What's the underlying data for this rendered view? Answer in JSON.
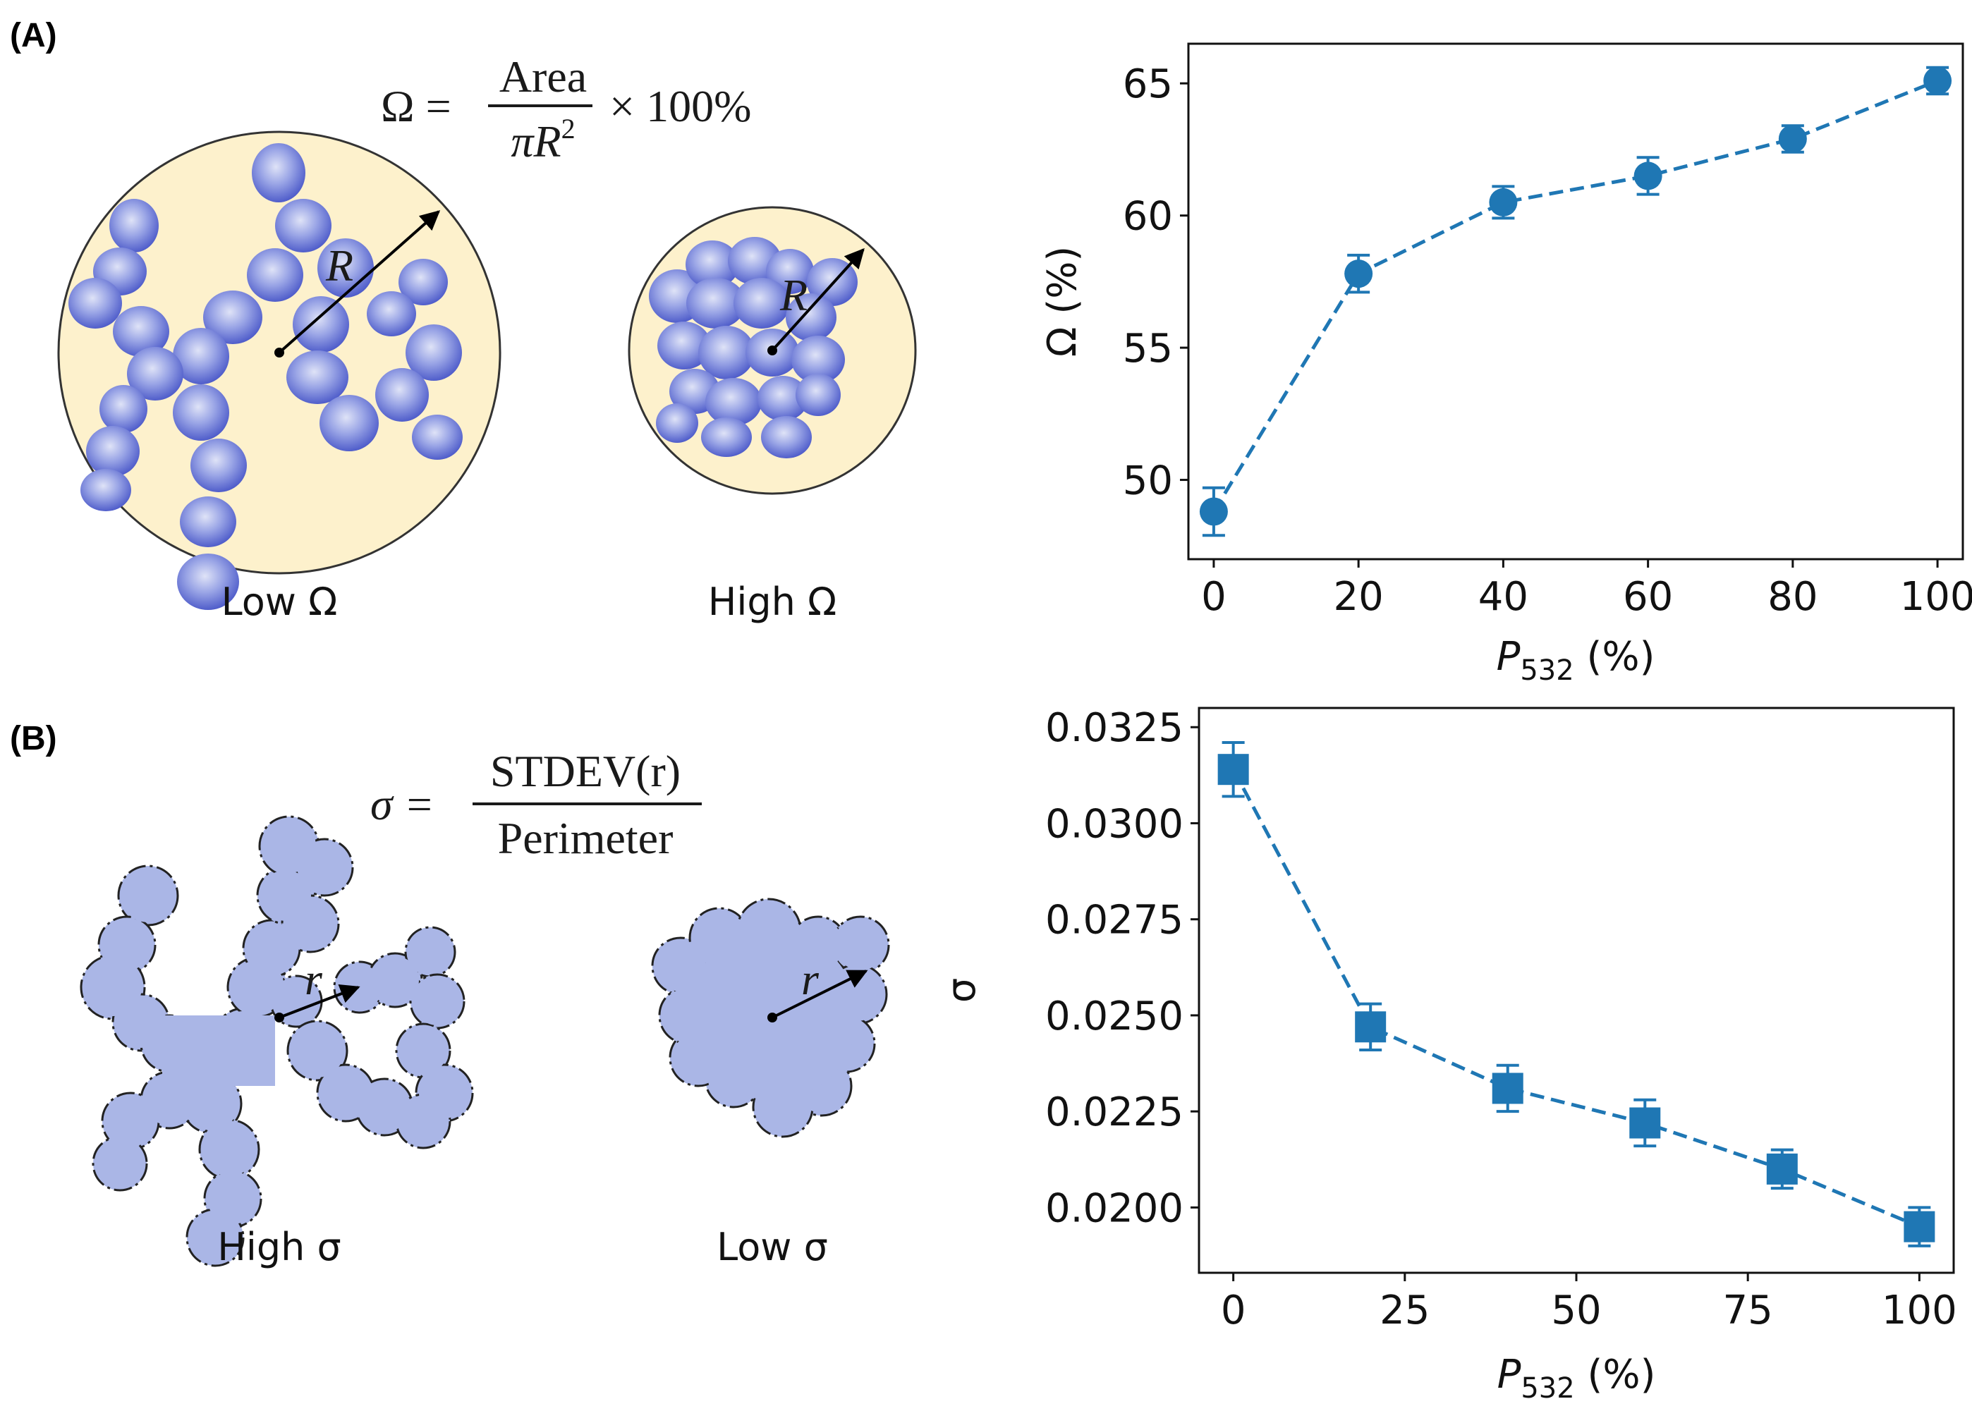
{
  "panels": {
    "a_label": "(A)",
    "b_label": "(B)"
  },
  "formulas": {
    "omega": {
      "lhs": "Ω =",
      "numerator": "Area",
      "denominator_base": "πR",
      "denominator_exp": "2",
      "rhs": "× 100%"
    },
    "sigma": {
      "lhs": "σ =",
      "numerator": "STDEV(r)",
      "denominator": "Perimeter"
    }
  },
  "illustrations": {
    "radius_label_R": "R",
    "radius_label_r": "r",
    "low_omega": "Low Ω",
    "high_omega": "High Ω",
    "high_sigma": "High σ",
    "low_sigma": "Low σ",
    "colors": {
      "disk_fill": "#fdf1cc",
      "blob": "#6b78d6",
      "cluster_fill": "#aab6e6"
    }
  },
  "chart_data": [
    {
      "type": "line",
      "marker": "circle",
      "x": [
        0,
        20,
        40,
        60,
        80,
        100
      ],
      "values": [
        48.8,
        57.8,
        60.5,
        61.5,
        62.9,
        65.1
      ],
      "errors": [
        0.9,
        0.7,
        0.6,
        0.7,
        0.5,
        0.5
      ],
      "xlim": [
        -3.5,
        103.5
      ],
      "ylim": [
        47.0,
        66.5
      ],
      "xticks": [
        0,
        20,
        40,
        60,
        80,
        100
      ],
      "xtick_labels": [
        "0",
        "20",
        "40",
        "60",
        "80",
        "100"
      ],
      "yticks": [
        50,
        55,
        60,
        65
      ],
      "ytick_labels": [
        "50",
        "55",
        "60",
        "65"
      ],
      "xlabel_main": "P",
      "xlabel_sub": "532",
      "xlabel_unit": " (%)",
      "ylabel": "Ω (%)",
      "color": "#1f77b4",
      "linestyle": "dashed"
    },
    {
      "type": "line",
      "marker": "square",
      "x": [
        0,
        20,
        40,
        60,
        80,
        100
      ],
      "values": [
        0.0314,
        0.0247,
        0.0231,
        0.0222,
        0.021,
        0.0195
      ],
      "errors": [
        0.0007,
        0.0006,
        0.0006,
        0.0006,
        0.0005,
        0.0005
      ],
      "xlim": [
        -5,
        105
      ],
      "ylim": [
        0.0183,
        0.033
      ],
      "xticks": [
        0,
        25,
        50,
        75,
        100
      ],
      "xtick_labels": [
        "0",
        "25",
        "50",
        "75",
        "100"
      ],
      "yticks": [
        0.02,
        0.0225,
        0.025,
        0.0275,
        0.03,
        0.0325
      ],
      "ytick_labels": [
        "0.0200",
        "0.0225",
        "0.0250",
        "0.0275",
        "0.0300",
        "0.0325"
      ],
      "xlabel_main": "P",
      "xlabel_sub": "532",
      "xlabel_unit": " (%)",
      "ylabel": "σ",
      "color": "#1f77b4",
      "linestyle": "dashed"
    }
  ]
}
